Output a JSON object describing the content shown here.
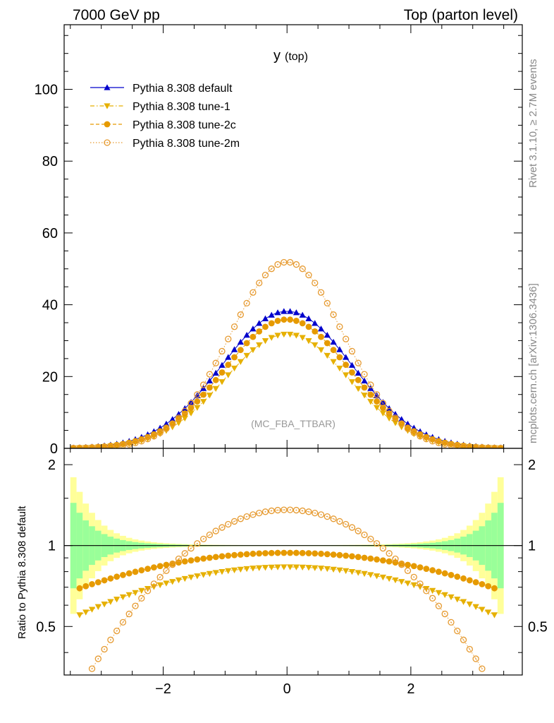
{
  "header": {
    "left": "7000 GeV pp",
    "right": "Top (parton level)"
  },
  "side_labels": {
    "rivet": "Rivet 3.1.10, ≥ 2.7M events",
    "mcplots": "mcplots.cern.ch [arXiv:1306.3436]"
  },
  "chart_data": {
    "type": "scatter",
    "title": "y",
    "title_sub": "(top)",
    "annotation": "(MC_FBA_TTBAR)",
    "main_panel": {
      "ylim": [
        0,
        118
      ],
      "yticks": [
        0,
        20,
        40,
        60,
        80,
        100
      ],
      "ytick_labels": [
        "0",
        "20",
        "40",
        "60",
        "80",
        "100"
      ],
      "legend_placement": "top-left"
    },
    "ratio_panel": {
      "ylabel": "Ratio to Pythia 8.308 default",
      "ylim": [
        0.33,
        2.3
      ],
      "log_scale": true,
      "yticks": [
        0.5,
        1,
        2
      ],
      "ytick_labels": [
        "0.5",
        "1",
        "2"
      ],
      "reference": 1
    },
    "x": {
      "xlim": [
        -3.6,
        3.8
      ],
      "xticks": [
        -2,
        0,
        2
      ],
      "xtick_labels": [
        "−2",
        "0",
        "2"
      ],
      "bins": [
        -3.5,
        3.5,
        70
      ]
    },
    "series": [
      {
        "name": "Pythia 8.308 default",
        "color": "#0000cc",
        "marker": "triangle-up",
        "line": "solid",
        "peak": 38.2,
        "sigma": 1.05,
        "tail_sigma": 0.93
      },
      {
        "name": "Pythia 8.308 tune-1",
        "color": "#e6b000",
        "marker": "triangle-down",
        "line": "dash-dot",
        "peak": 31.8,
        "sigma": 1.01
      },
      {
        "name": "Pythia 8.308 tune-2c",
        "color": "#e69a00",
        "marker": "circle-filled",
        "line": "dashed",
        "peak": 35.9,
        "sigma": 1.02
      },
      {
        "name": "Pythia 8.308 tune-2m",
        "color": "#e69a30",
        "marker": "circle-open",
        "line": "dotted",
        "peak": 51.9,
        "sigma": 0.92
      }
    ],
    "uncertainty_band": {
      "inner_color": "#99ff99",
      "outer_color": "#ffff99"
    }
  }
}
